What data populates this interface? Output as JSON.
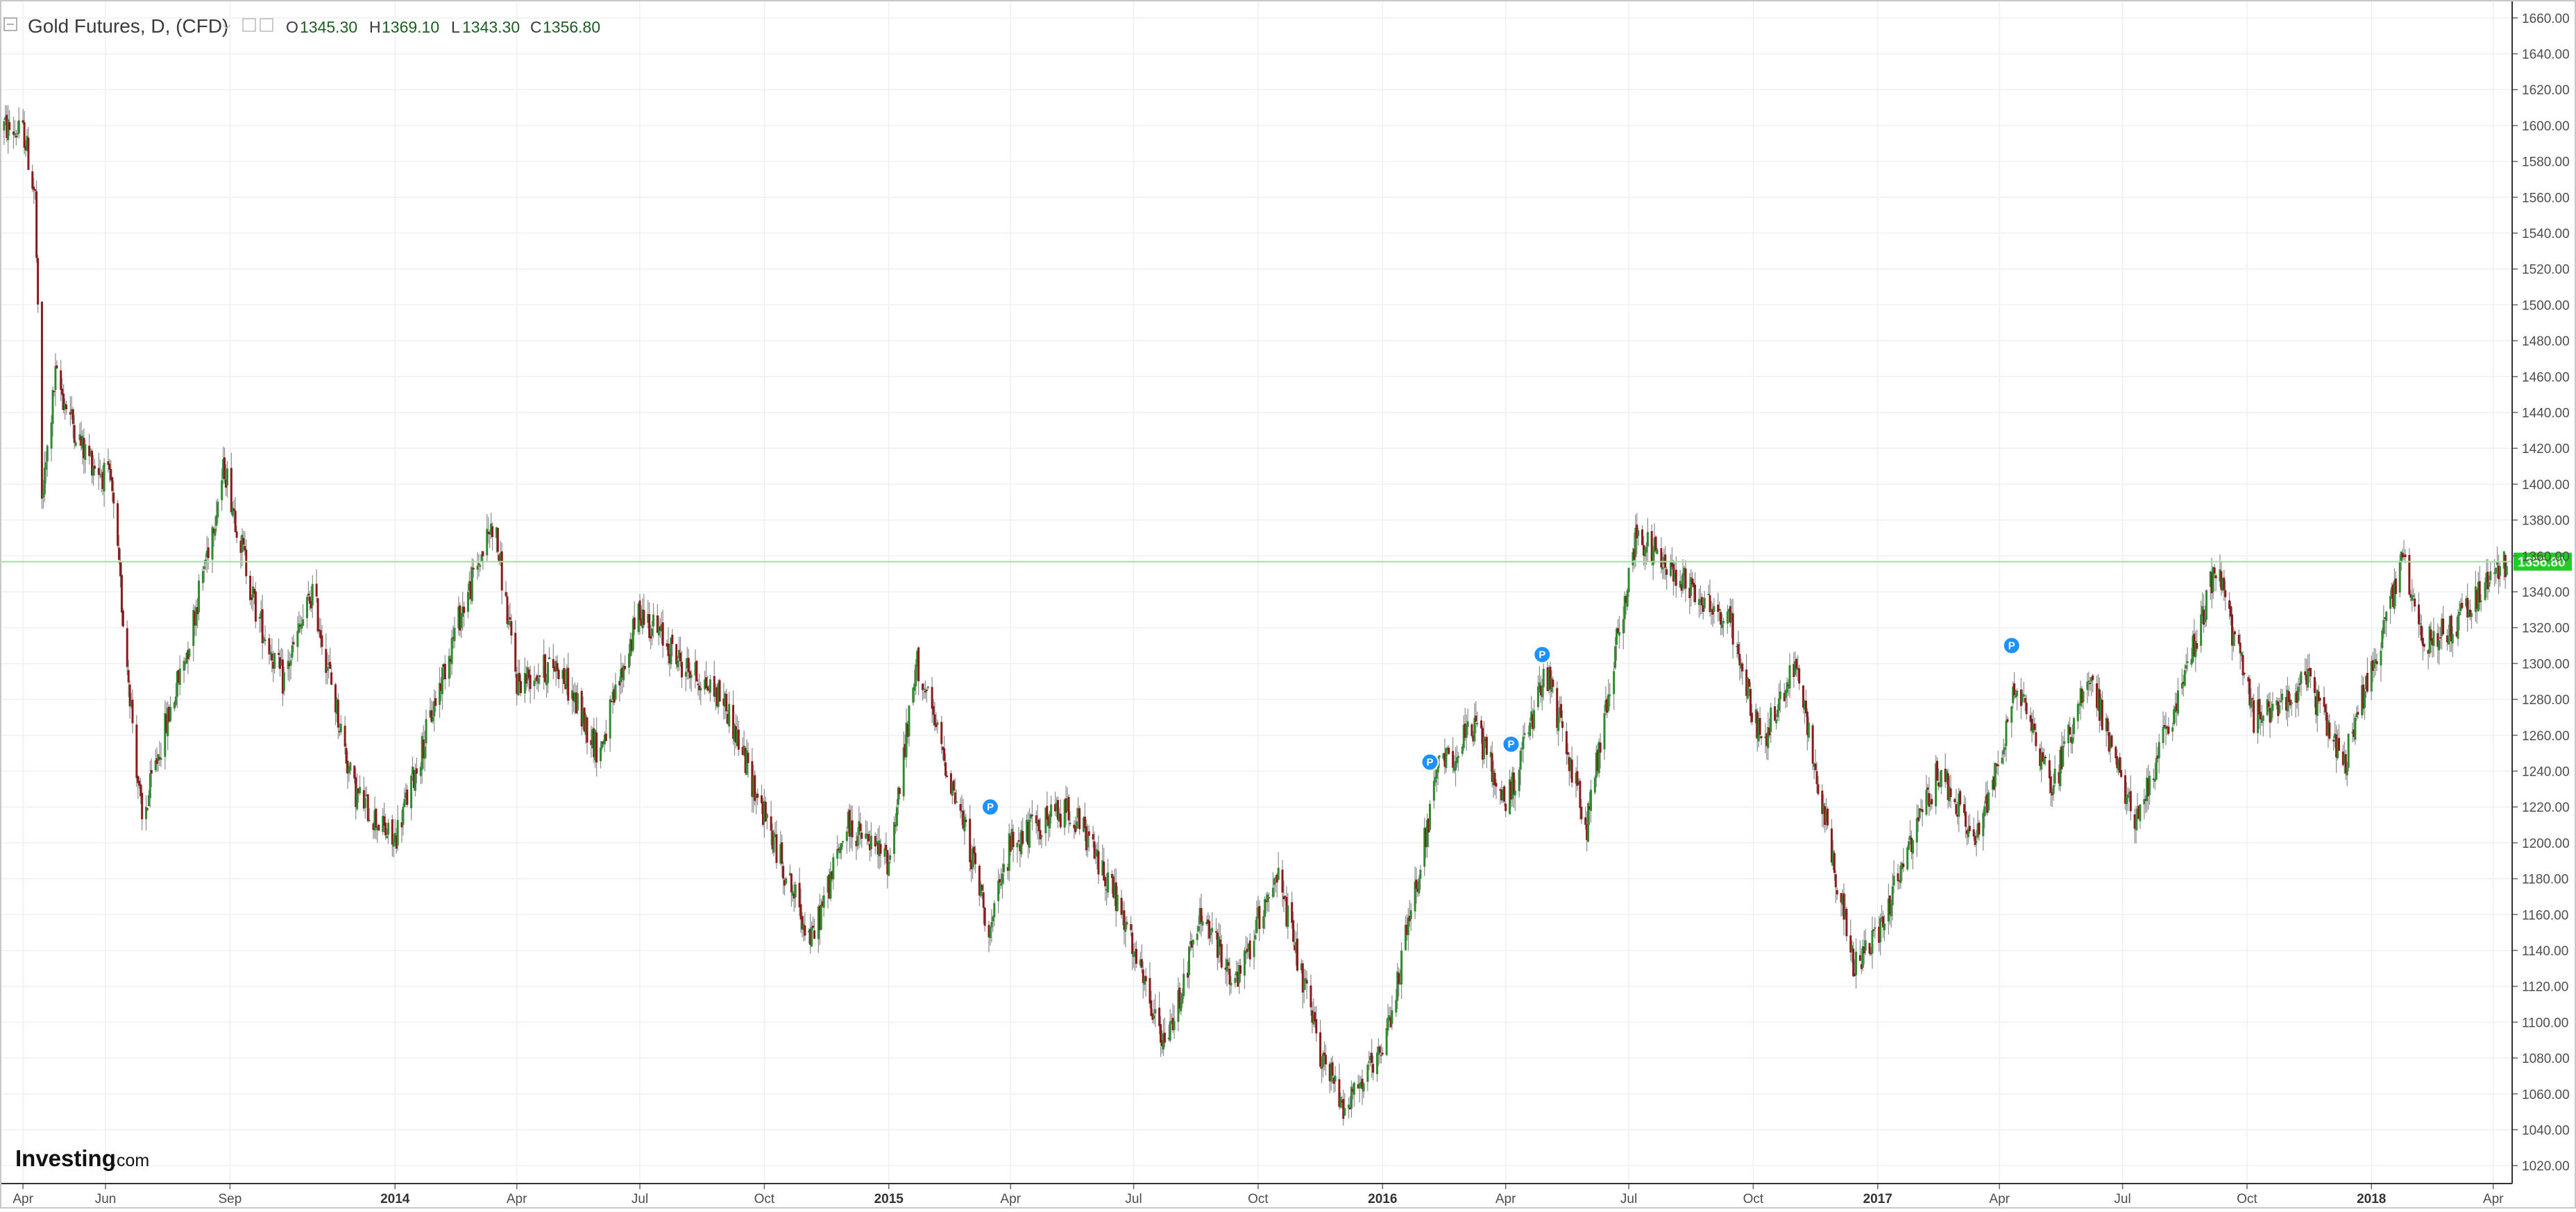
{
  "header": {
    "symbol_title": "Gold Futures, D, (CFD)",
    "open_label": "O",
    "open_value": "1345.30",
    "high_label": "H",
    "high_value": "1369.10",
    "low_label": "L",
    "low_value": "1343.30",
    "close_label": "C",
    "close_value": "1356.80"
  },
  "branding": {
    "logo_main": "Investing",
    "logo_suffix": ".com"
  },
  "colors": {
    "up": "#2e8b2e",
    "down": "#8b1a1a",
    "wick": "#8a8a8a",
    "grid": "#f0f0f0",
    "last_price_line": "#9ce39c",
    "last_price_label": "#22cc22",
    "marker": "#1e90ff",
    "axis": "#333333"
  },
  "chart_data": {
    "type": "candlestick",
    "instrument": "Gold Futures",
    "interval": "D",
    "ohlc_last": {
      "open": 1345.3,
      "high": 1369.1,
      "low": 1343.3,
      "close": 1356.8
    },
    "last_price_label": "1356.80",
    "ylim": [
      1010,
      1670
    ],
    "xlim": [
      "2013-03-15",
      "2018-04-15"
    ],
    "y_ticks": [
      1020,
      1040,
      1060,
      1080,
      1100,
      1120,
      1140,
      1160,
      1180,
      1200,
      1220,
      1240,
      1260,
      1280,
      1300,
      1320,
      1340,
      1360,
      1380,
      1400,
      1420,
      1440,
      1460,
      1480,
      1500,
      1520,
      1540,
      1560,
      1580,
      1600,
      1620,
      1640,
      1660
    ],
    "x_ticks": [
      {
        "date": "2013-04-01",
        "label": "Apr"
      },
      {
        "date": "2013-06-01",
        "label": "Jun"
      },
      {
        "date": "2013-09-01",
        "label": "Sep"
      },
      {
        "date": "2014-01-01",
        "label": "2014"
      },
      {
        "date": "2014-04-01",
        "label": "Apr"
      },
      {
        "date": "2014-07-01",
        "label": "Jul"
      },
      {
        "date": "2014-10-01",
        "label": "Oct"
      },
      {
        "date": "2015-01-01",
        "label": "2015"
      },
      {
        "date": "2015-04-01",
        "label": "Apr"
      },
      {
        "date": "2015-07-01",
        "label": "Jul"
      },
      {
        "date": "2015-10-01",
        "label": "Oct"
      },
      {
        "date": "2016-01-01",
        "label": "2016"
      },
      {
        "date": "2016-04-01",
        "label": "Apr"
      },
      {
        "date": "2016-07-01",
        "label": "Jul"
      },
      {
        "date": "2016-10-01",
        "label": "Oct"
      },
      {
        "date": "2017-01-01",
        "label": "2017"
      },
      {
        "date": "2017-04-01",
        "label": "Apr"
      },
      {
        "date": "2017-07-01",
        "label": "Jul"
      },
      {
        "date": "2017-10-01",
        "label": "Oct"
      },
      {
        "date": "2018-01-01",
        "label": "2018"
      },
      {
        "date": "2018-04-01",
        "label": "Apr"
      }
    ],
    "price_path": [
      {
        "date": "2013-03-15",
        "price": 1600
      },
      {
        "date": "2013-04-02",
        "price": 1595
      },
      {
        "date": "2013-04-10",
        "price": 1560
      },
      {
        "date": "2013-04-15",
        "price": 1390
      },
      {
        "date": "2013-04-25",
        "price": 1460
      },
      {
        "date": "2013-05-15",
        "price": 1420
      },
      {
        "date": "2013-06-05",
        "price": 1400
      },
      {
        "date": "2013-06-28",
        "price": 1210
      },
      {
        "date": "2013-07-10",
        "price": 1250
      },
      {
        "date": "2013-08-01",
        "price": 1310
      },
      {
        "date": "2013-08-28",
        "price": 1410
      },
      {
        "date": "2013-09-20",
        "price": 1330
      },
      {
        "date": "2013-10-10",
        "price": 1290
      },
      {
        "date": "2013-11-01",
        "price": 1340
      },
      {
        "date": "2013-12-01",
        "price": 1230
      },
      {
        "date": "2013-12-31",
        "price": 1200
      },
      {
        "date": "2014-01-20",
        "price": 1250
      },
      {
        "date": "2014-02-15",
        "price": 1320
      },
      {
        "date": "2014-03-15",
        "price": 1380
      },
      {
        "date": "2014-04-01",
        "price": 1290
      },
      {
        "date": "2014-05-01",
        "price": 1300
      },
      {
        "date": "2014-06-01",
        "price": 1250
      },
      {
        "date": "2014-07-01",
        "price": 1330
      },
      {
        "date": "2014-08-01",
        "price": 1300
      },
      {
        "date": "2014-09-01",
        "price": 1280
      },
      {
        "date": "2014-10-01",
        "price": 1215
      },
      {
        "date": "2014-11-05",
        "price": 1145
      },
      {
        "date": "2014-12-01",
        "price": 1210
      },
      {
        "date": "2015-01-01",
        "price": 1190
      },
      {
        "date": "2015-01-22",
        "price": 1300
      },
      {
        "date": "2015-03-01",
        "price": 1200
      },
      {
        "date": "2015-03-17",
        "price": 1150
      },
      {
        "date": "2015-04-01",
        "price": 1200
      },
      {
        "date": "2015-05-15",
        "price": 1220
      },
      {
        "date": "2015-06-15",
        "price": 1175
      },
      {
        "date": "2015-07-24",
        "price": 1085
      },
      {
        "date": "2015-08-20",
        "price": 1160
      },
      {
        "date": "2015-09-15",
        "price": 1120
      },
      {
        "date": "2015-10-14",
        "price": 1185
      },
      {
        "date": "2015-11-15",
        "price": 1085
      },
      {
        "date": "2015-12-03",
        "price": 1055
      },
      {
        "date": "2016-01-01",
        "price": 1080
      },
      {
        "date": "2016-02-11",
        "price": 1240
      },
      {
        "date": "2016-03-10",
        "price": 1265
      },
      {
        "date": "2016-04-01",
        "price": 1220
      },
      {
        "date": "2016-05-01",
        "price": 1295
      },
      {
        "date": "2016-05-31",
        "price": 1210
      },
      {
        "date": "2016-06-24",
        "price": 1320
      },
      {
        "date": "2016-07-06",
        "price": 1370
      },
      {
        "date": "2016-08-15",
        "price": 1345
      },
      {
        "date": "2016-09-15",
        "price": 1320
      },
      {
        "date": "2016-10-07",
        "price": 1255
      },
      {
        "date": "2016-11-01",
        "price": 1300
      },
      {
        "date": "2016-12-15",
        "price": 1130
      },
      {
        "date": "2017-01-01",
        "price": 1150
      },
      {
        "date": "2017-02-15",
        "price": 1240
      },
      {
        "date": "2017-03-15",
        "price": 1200
      },
      {
        "date": "2017-04-15",
        "price": 1290
      },
      {
        "date": "2017-05-10",
        "price": 1230
      },
      {
        "date": "2017-06-06",
        "price": 1295
      },
      {
        "date": "2017-07-10",
        "price": 1210
      },
      {
        "date": "2017-08-15",
        "price": 1290
      },
      {
        "date": "2017-09-08",
        "price": 1355
      },
      {
        "date": "2017-10-06",
        "price": 1270
      },
      {
        "date": "2017-11-15",
        "price": 1290
      },
      {
        "date": "2017-12-12",
        "price": 1245
      },
      {
        "date": "2018-01-25",
        "price": 1360
      },
      {
        "date": "2018-02-08",
        "price": 1310
      },
      {
        "date": "2018-03-01",
        "price": 1320
      },
      {
        "date": "2018-04-11",
        "price": 1356.8
      }
    ],
    "markers": [
      {
        "date": "2015-03-17",
        "price": 1220,
        "label": "P"
      },
      {
        "date": "2016-02-05",
        "price": 1245,
        "label": "P"
      },
      {
        "date": "2016-04-05",
        "price": 1255,
        "label": "P"
      },
      {
        "date": "2016-04-28",
        "price": 1305,
        "label": "P"
      },
      {
        "date": "2017-04-10",
        "price": 1310,
        "label": "P"
      }
    ]
  }
}
